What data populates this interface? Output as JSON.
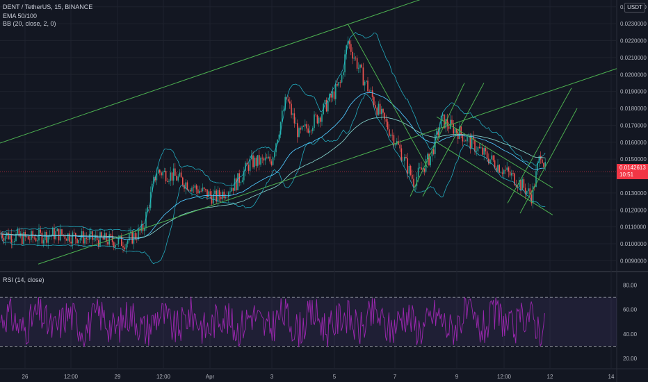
{
  "header": {
    "symbol_line": "DENT / TetherUS, 15, BINANCE",
    "ema_label": "EMA 50/100",
    "bb_label": "BB (20, close, 2, 0)",
    "rsi_label": "RSI (14, close)",
    "currency_button": "USDT"
  },
  "last_price": {
    "value": "0.0142613",
    "countdown": "10:51"
  },
  "colors": {
    "background": "#131722",
    "grid": "#1e222d",
    "up": "#26a69a",
    "down": "#ef5350",
    "channel_lines": "#4caf50",
    "bb_band": "#26c6da",
    "ema": "#4fc3f7",
    "rsi_line": "#9c27b0",
    "price_tag": "#f23645"
  },
  "chart_data": [
    {
      "type": "candlestick",
      "title": "DENT / TetherUS, 15, BINANCE",
      "price_axis_ticks": [
        "0.0240000",
        "0.0230000",
        "0.0220000",
        "0.0210000",
        "0.0200000",
        "0.0190000",
        "0.0180000",
        "0.0170000",
        "0.0160000",
        "0.0150000",
        "0.0140000",
        "0.0130000",
        "0.0120000",
        "0.0110000",
        "0.0100000",
        "0.0090000"
      ],
      "time_axis_ticks": [
        "26",
        "12:00",
        "29",
        "12:00",
        "Apr",
        "3",
        "5",
        "7",
        "9",
        "12:00",
        "12",
        "14"
      ],
      "ylim": [
        0.0084,
        0.0244
      ],
      "price_path": [
        {
          "x": 0,
          "y": 0.0106
        },
        {
          "x": 40,
          "y": 0.0103
        },
        {
          "x": 80,
          "y": 0.0106
        },
        {
          "x": 130,
          "y": 0.0103
        },
        {
          "x": 180,
          "y": 0.0101
        },
        {
          "x": 205,
          "y": 0.0108
        },
        {
          "x": 225,
          "y": 0.0143
        },
        {
          "x": 250,
          "y": 0.014
        },
        {
          "x": 280,
          "y": 0.0133
        },
        {
          "x": 310,
          "y": 0.0127
        },
        {
          "x": 340,
          "y": 0.0136
        },
        {
          "x": 360,
          "y": 0.0148
        },
        {
          "x": 390,
          "y": 0.0149
        },
        {
          "x": 412,
          "y": 0.0186
        },
        {
          "x": 430,
          "y": 0.0164
        },
        {
          "x": 460,
          "y": 0.0176
        },
        {
          "x": 490,
          "y": 0.0195
        },
        {
          "x": 500,
          "y": 0.022
        },
        {
          "x": 520,
          "y": 0.02
        },
        {
          "x": 545,
          "y": 0.0178
        },
        {
          "x": 570,
          "y": 0.016
        },
        {
          "x": 595,
          "y": 0.0137
        },
        {
          "x": 620,
          "y": 0.0152
        },
        {
          "x": 635,
          "y": 0.0173
        },
        {
          "x": 660,
          "y": 0.0166
        },
        {
          "x": 690,
          "y": 0.0155
        },
        {
          "x": 720,
          "y": 0.0145
        },
        {
          "x": 745,
          "y": 0.0137
        },
        {
          "x": 765,
          "y": 0.0128
        },
        {
          "x": 778,
          "y": 0.0155
        },
        {
          "x": 785,
          "y": 0.01426
        }
      ],
      "trend_lines": [
        {
          "x1": 0,
          "y1": 0.01595,
          "x2": 610,
          "y2": 0.0245
        },
        {
          "x1": 55,
          "y1": 0.0088,
          "x2": 887,
          "y2": 0.02035
        },
        {
          "x1": 500,
          "y1": 0.023,
          "x2": 615,
          "y2": 0.0145
        },
        {
          "x1": 628,
          "y1": 0.0175,
          "x2": 795,
          "y2": 0.0133
        },
        {
          "x1": 628,
          "y1": 0.016,
          "x2": 795,
          "y2": 0.0117
        },
        {
          "x1": 590,
          "y1": 0.0128,
          "x2": 668,
          "y2": 0.0195
        },
        {
          "x1": 608,
          "y1": 0.0128,
          "x2": 696,
          "y2": 0.0195
        },
        {
          "x1": 730,
          "y1": 0.0124,
          "x2": 822,
          "y2": 0.0192
        },
        {
          "x1": 748,
          "y1": 0.0118,
          "x2": 830,
          "y2": 0.018
        }
      ]
    },
    {
      "type": "line",
      "title": "RSI (14, close)",
      "rsi_axis_ticks": [
        "80.00",
        "60.00",
        "40.00",
        "20.00"
      ],
      "ylim": [
        12,
        90
      ],
      "upper_band": 70,
      "lower_band": 30
    }
  ]
}
